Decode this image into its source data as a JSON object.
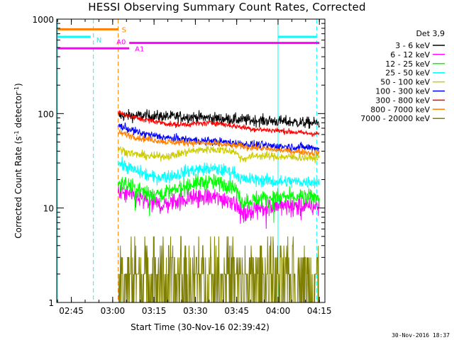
{
  "chart_data": {
    "type": "line",
    "title": "HESSI Observing Summary Count Rates, Corrected",
    "xlabel": "Start Time (30-Nov-16 02:39:42)",
    "ylabel": "Corrected Count Rate (s⁻¹ detector⁻¹)",
    "yscale": "log",
    "ylim": [
      1,
      1000
    ],
    "xlim": [
      "02:39:42",
      "04:17:00"
    ],
    "x_ticks": [
      "02:45",
      "03:00",
      "03:15",
      "03:30",
      "03:45",
      "04:00",
      "04:15"
    ],
    "y_ticks": [
      "1",
      "10",
      "100",
      "1000"
    ],
    "legend_title": "Det 3,9",
    "legend_position": "right",
    "data_start": "03:02",
    "data_end": "04:15",
    "series": [
      {
        "name": "3 - 6 keV",
        "color": "#000000",
        "profile": [
          [
            "03:02",
            95
          ],
          [
            "03:10",
            95
          ],
          [
            "03:20",
            93
          ],
          [
            "03:30",
            92
          ],
          [
            "03:40",
            88
          ],
          [
            "03:50",
            85
          ],
          [
            "04:00",
            83
          ],
          [
            "04:10",
            80
          ],
          [
            "04:15",
            79
          ]
        ],
        "noise": 0.07
      },
      {
        "name": "6 - 12 keV",
        "color": "#ff00ff",
        "profile": [
          [
            "03:02",
            15
          ],
          [
            "03:08",
            13
          ],
          [
            "03:15",
            11
          ],
          [
            "03:20",
            11
          ],
          [
            "03:25",
            12.5
          ],
          [
            "03:30",
            13
          ],
          [
            "03:35",
            13
          ],
          [
            "03:40",
            12.5
          ],
          [
            "03:44",
            12
          ],
          [
            "03:47",
            8.5
          ],
          [
            "03:52",
            10
          ],
          [
            "04:00",
            10.5
          ],
          [
            "04:10",
            10.5
          ],
          [
            "04:15",
            10.5
          ]
        ],
        "noise": 0.12
      },
      {
        "name": "12 - 25 keV",
        "color": "#00ff00",
        "profile": [
          [
            "03:02",
            19
          ],
          [
            "03:08",
            16
          ],
          [
            "03:15",
            14
          ],
          [
            "03:22",
            15
          ],
          [
            "03:28",
            18
          ],
          [
            "03:35",
            19
          ],
          [
            "03:40",
            18
          ],
          [
            "03:44",
            17
          ],
          [
            "03:47",
            11.5
          ],
          [
            "03:52",
            12.5
          ],
          [
            "04:00",
            13
          ],
          [
            "04:10",
            13
          ],
          [
            "04:15",
            13
          ]
        ],
        "noise": 0.1
      },
      {
        "name": "25 - 50 keV",
        "color": "#00ffff",
        "profile": [
          [
            "03:02",
            30
          ],
          [
            "03:08",
            25
          ],
          [
            "03:15",
            21
          ],
          [
            "03:22",
            22
          ],
          [
            "03:28",
            25
          ],
          [
            "03:35",
            26
          ],
          [
            "03:40",
            25
          ],
          [
            "03:44",
            24
          ],
          [
            "03:47",
            20
          ],
          [
            "03:52",
            20
          ],
          [
            "04:00",
            19
          ],
          [
            "04:10",
            19
          ],
          [
            "04:15",
            19
          ]
        ],
        "noise": 0.08
      },
      {
        "name": "50 - 100 keV",
        "color": "#cccc00",
        "profile": [
          [
            "03:02",
            42
          ],
          [
            "03:08",
            37
          ],
          [
            "03:15",
            35
          ],
          [
            "03:22",
            36
          ],
          [
            "03:28",
            40
          ],
          [
            "03:35",
            42
          ],
          [
            "03:40",
            41
          ],
          [
            "03:44",
            40
          ],
          [
            "03:47",
            33
          ],
          [
            "03:52",
            36
          ],
          [
            "04:00",
            35
          ],
          [
            "04:10",
            34
          ],
          [
            "04:15",
            34
          ]
        ],
        "noise": 0.05
      },
      {
        "name": "100 - 300 keV",
        "color": "#0000ff",
        "profile": [
          [
            "03:02",
            75
          ],
          [
            "03:10",
            62
          ],
          [
            "03:20",
            55
          ],
          [
            "03:30",
            52
          ],
          [
            "03:40",
            50
          ],
          [
            "03:50",
            47
          ],
          [
            "04:00",
            45
          ],
          [
            "04:10",
            44
          ],
          [
            "04:15",
            43
          ]
        ],
        "noise": 0.05
      },
      {
        "name": "300 - 800 keV",
        "color": "#ff0000",
        "profile": [
          [
            "03:02",
            103
          ],
          [
            "03:07",
            92
          ],
          [
            "03:15",
            83
          ],
          [
            "03:22",
            76
          ],
          [
            "03:30",
            78
          ],
          [
            "03:37",
            80
          ],
          [
            "03:44",
            74
          ],
          [
            "03:52",
            68
          ],
          [
            "04:00",
            66
          ],
          [
            "04:10",
            62
          ],
          [
            "04:15",
            61
          ]
        ],
        "noise": 0.035
      },
      {
        "name": "800 - 7000 keV",
        "color": "#ff8000",
        "profile": [
          [
            "03:02",
            63
          ],
          [
            "03:10",
            55
          ],
          [
            "03:20",
            50
          ],
          [
            "03:30",
            49
          ],
          [
            "03:40",
            47
          ],
          [
            "03:50",
            44
          ],
          [
            "04:00",
            41
          ],
          [
            "04:10",
            39
          ],
          [
            "04:15",
            38
          ]
        ],
        "noise": 0.04
      },
      {
        "name": "7000 - 20000 keV",
        "color": "#808000",
        "profile": [
          [
            "03:02",
            2.5
          ],
          [
            "04:15",
            2.3
          ]
        ],
        "noise": 0,
        "quantized": true
      }
    ],
    "flag_bars": [
      {
        "label": "S",
        "color": "#ff8000",
        "start": "02:40",
        "end": "03:02",
        "level": 780
      },
      {
        "label": "N",
        "color": "#00ffff",
        "start": "02:40",
        "end": "02:52",
        "level": 650
      },
      {
        "label": "N",
        "color": "#00ffff",
        "start": "04:00",
        "end": "04:14",
        "level": 650
      },
      {
        "label": "A0",
        "color": "#ff00ff",
        "start": "03:06",
        "end": "04:15",
        "level": 560
      },
      {
        "label": "A1",
        "color": "#ff00ff",
        "start": "02:40",
        "end": "03:06",
        "level": 490
      }
    ],
    "vertical_markers": [
      {
        "time": "02:40",
        "color": "#00ffff",
        "style": "solid"
      },
      {
        "time": "02:53",
        "color": "#00ffff",
        "style": "dashed"
      },
      {
        "time": "03:02",
        "color": "#ff8000",
        "style": "dashed"
      },
      {
        "time": "04:00",
        "color": "#00ffff",
        "style": "solid"
      },
      {
        "time": "04:14",
        "color": "#00ffff",
        "style": "dashed"
      }
    ]
  },
  "footer": {
    "timestamp": "30-Nov-2016 18:37"
  }
}
